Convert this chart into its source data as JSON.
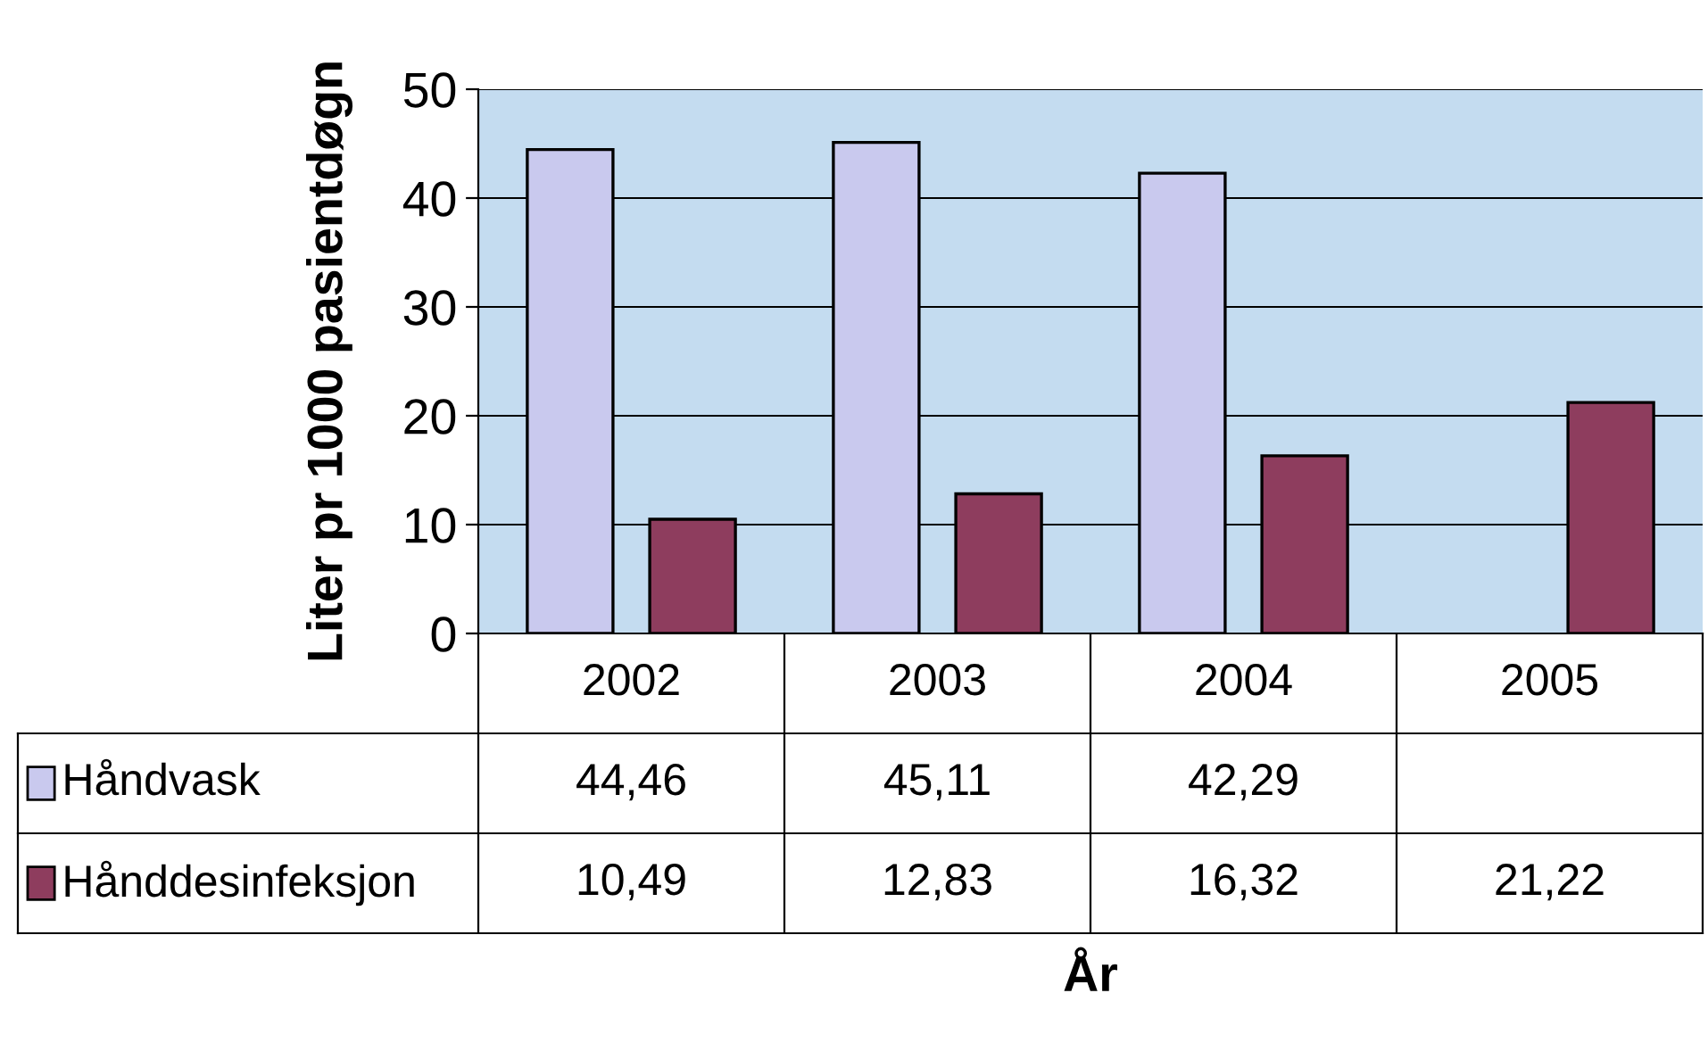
{
  "chart_data": {
    "type": "bar",
    "annotations": [
      "År"
    ],
    "ylabel": "Liter pr 1000 pasientdøgn",
    "categories": [
      "2002",
      "2003",
      "2004",
      "2005"
    ],
    "series": [
      {
        "name": "Håndvask",
        "color": "#c9c9ee",
        "values": [
          44.46,
          45.11,
          42.29,
          null
        ],
        "value_labels": [
          "44,46",
          "45,11",
          "42,29",
          null
        ]
      },
      {
        "name": "Hånddesinfeksjon",
        "color": "#8e3d5e",
        "values": [
          10.49,
          12.83,
          16.32,
          21.22
        ],
        "value_labels": [
          "10,49",
          "12,83",
          "16,32",
          "21,22"
        ]
      }
    ],
    "ylim": [
      0,
      50
    ],
    "yticks": [
      0,
      10,
      20,
      30,
      40,
      50
    ],
    "grid": "y",
    "legend": "bottom left"
  }
}
